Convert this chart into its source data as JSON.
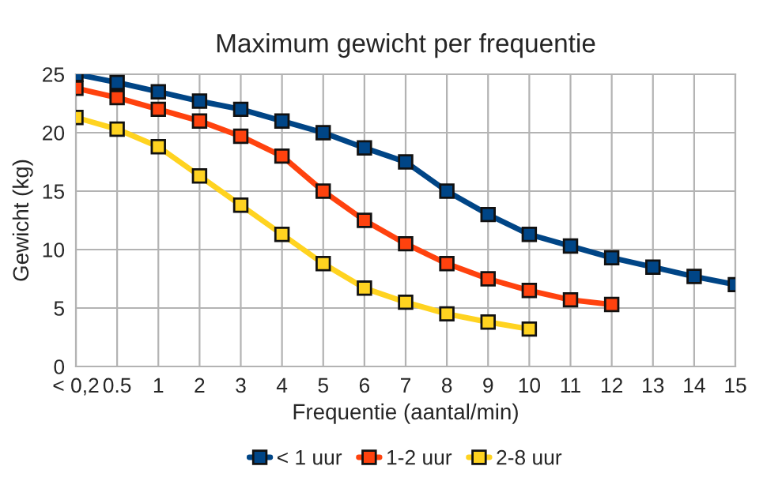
{
  "chart_data": {
    "type": "line",
    "title": "Maximum gewicht per frequentie",
    "xlabel": "Frequentie (aantal/min)",
    "ylabel": "Gewicht (kg)",
    "categories": [
      "< 0,2",
      "0.5",
      "1",
      "2",
      "3",
      "4",
      "5",
      "6",
      "7",
      "8",
      "9",
      "10",
      "11",
      "12",
      "13",
      "14",
      "15"
    ],
    "series": [
      {
        "name": "< 1 uur",
        "color": "#004586",
        "values": [
          25,
          24.3,
          23.5,
          22.7,
          22,
          21,
          20,
          18.7,
          17.5,
          15,
          13,
          11.3,
          10.3,
          9.3,
          8.5,
          7.7,
          7
        ]
      },
      {
        "name": "1-2 uur",
        "color": "#ff420e",
        "values": [
          23.8,
          23,
          22,
          21,
          19.7,
          18,
          15,
          12.5,
          10.5,
          8.8,
          7.5,
          6.5,
          5.7,
          5.3,
          null,
          null,
          null
        ]
      },
      {
        "name": "2-8 uur",
        "color": "#ffd320",
        "values": [
          21.3,
          20.3,
          18.8,
          16.3,
          13.8,
          11.3,
          8.8,
          6.7,
          5.5,
          4.5,
          3.8,
          3.2,
          null,
          null,
          null,
          null,
          null
        ]
      }
    ],
    "ylim": [
      0,
      25
    ],
    "yticks": [
      0,
      5,
      10,
      15,
      20,
      25
    ],
    "grid": true,
    "legend": "bottom",
    "marker": "square",
    "line_style": "solid"
  }
}
